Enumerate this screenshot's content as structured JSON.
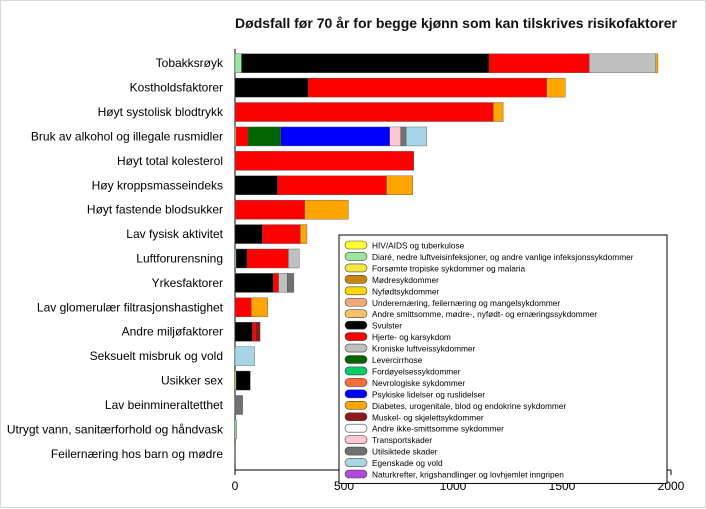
{
  "chart_data": {
    "type": "bar",
    "stacked": true,
    "orientation": "horizontal",
    "title": "Dødsfall før 70 år for begge kjønn som kan tilskrives risikofaktorer",
    "xlim": [
      0,
      2000
    ],
    "x_ticks": [
      "0",
      "500",
      "1000",
      "1500",
      "2000"
    ],
    "grid": false,
    "legend_position": "bottom-right",
    "categories": [
      "Tobakksrøyk",
      "Kostholdsfaktorer",
      "Høyt systolisk blodtrykk",
      "Bruk av alkohol og illegale rusmidler",
      "Høyt total kolesterol",
      "Høy kroppsmasseindeks",
      "Høyt fastende blodsukker",
      "Lav fysisk aktivitet",
      "Luftforurensning",
      "Yrkesfaktorer",
      "Lav glomerulær filtrasjonshastighet",
      "Andre miljøfaktorer",
      "Seksuelt misbruk og vold",
      "Usikker sex",
      "Lav beinmineraltetthet",
      "Utrygt vann, sanitærforhold og håndvask",
      "Feilernæring hos barn og mødre"
    ],
    "series": [
      {
        "name": "HIV/AIDS og tuberkulose",
        "color": "#ffff33",
        "values": [
          0,
          0,
          0,
          0,
          0,
          0,
          0,
          0,
          0,
          0,
          0,
          0,
          0,
          5,
          0,
          0,
          0
        ]
      },
      {
        "name": "Diaré, nedre luftveisinfeksjoner, og andre vanlige infeksjonssykdommer",
        "color": "#99e6a0",
        "values": [
          30,
          0,
          0,
          0,
          0,
          0,
          0,
          0,
          5,
          0,
          0,
          0,
          0,
          0,
          0,
          8,
          3
        ]
      },
      {
        "name": "Forsømte tropiske sykdommer og malaria",
        "color": "#f5e642",
        "values": [
          0,
          0,
          0,
          0,
          0,
          0,
          0,
          0,
          0,
          0,
          0,
          0,
          0,
          0,
          0,
          0,
          0
        ]
      },
      {
        "name": "Mødresykdommer",
        "color": "#c8860a",
        "values": [
          0,
          0,
          0,
          0,
          0,
          0,
          0,
          0,
          0,
          0,
          0,
          0,
          0,
          0,
          0,
          0,
          0
        ]
      },
      {
        "name": "Nyfødtsykdommer",
        "color": "#ffd700",
        "values": [
          0,
          0,
          0,
          0,
          0,
          0,
          0,
          0,
          0,
          0,
          0,
          0,
          0,
          0,
          0,
          0,
          0
        ]
      },
      {
        "name": "Underernæring, feilernæring og mangelsykdommer",
        "color": "#f0a878",
        "values": [
          0,
          0,
          0,
          0,
          0,
          0,
          0,
          0,
          0,
          0,
          0,
          0,
          0,
          0,
          0,
          0,
          0
        ]
      },
      {
        "name": "Andre smittsomme, mødre-, nyfødt- og ernæringssykdommer",
        "color": "#f4c36a",
        "values": [
          0,
          0,
          0,
          5,
          0,
          0,
          0,
          0,
          0,
          0,
          0,
          0,
          0,
          0,
          0,
          0,
          0
        ]
      },
      {
        "name": "Svulster",
        "color": "#000000",
        "values": [
          1135,
          335,
          0,
          0,
          0,
          195,
          0,
          125,
          50,
          175,
          0,
          80,
          0,
          65,
          0,
          0,
          0
        ]
      },
      {
        "name": "Hjerte- og karsykdom",
        "color": "#ff0000",
        "values": [
          460,
          1095,
          1185,
          55,
          820,
          500,
          320,
          175,
          190,
          25,
          75,
          15,
          0,
          0,
          0,
          0,
          0
        ]
      },
      {
        "name": "Kroniske luftveissykdommer",
        "color": "#c0c0c0",
        "values": [
          305,
          0,
          0,
          0,
          0,
          0,
          0,
          0,
          50,
          40,
          0,
          0,
          0,
          0,
          0,
          0,
          0
        ]
      },
      {
        "name": "Levercirrhose",
        "color": "#006400",
        "values": [
          0,
          0,
          0,
          150,
          0,
          0,
          0,
          0,
          0,
          0,
          0,
          0,
          0,
          0,
          0,
          0,
          0
        ]
      },
      {
        "name": "Fordøyelsessykdommer",
        "color": "#00cc66",
        "values": [
          0,
          0,
          0,
          0,
          0,
          0,
          0,
          0,
          0,
          0,
          0,
          0,
          0,
          0,
          0,
          0,
          0
        ]
      },
      {
        "name": "Nevrologiske sykdommer",
        "color": "#ff6b3d",
        "values": [
          0,
          0,
          0,
          0,
          0,
          0,
          0,
          0,
          0,
          0,
          0,
          0,
          0,
          0,
          0,
          0,
          0
        ]
      },
      {
        "name": "Psykiske lidelser og ruslidelser",
        "color": "#0000ff",
        "values": [
          0,
          0,
          0,
          500,
          0,
          0,
          0,
          0,
          0,
          0,
          0,
          0,
          0,
          0,
          0,
          0,
          0
        ]
      },
      {
        "name": "Diabetes, urogenitale, blod og endokrine sykdommer",
        "color": "#ffa500",
        "values": [
          10,
          85,
          45,
          0,
          0,
          120,
          200,
          30,
          0,
          0,
          75,
          0,
          0,
          0,
          0,
          0,
          0
        ]
      },
      {
        "name": "Muskel- og skjelettsykdommer",
        "color": "#8b1a1a",
        "values": [
          0,
          0,
          0,
          0,
          0,
          0,
          0,
          0,
          0,
          0,
          0,
          20,
          0,
          0,
          0,
          0,
          0
        ]
      },
      {
        "name": "Andre ikke-smittsomme sykdommer",
        "color": "#ffffff",
        "values": [
          0,
          0,
          0,
          0,
          0,
          0,
          0,
          0,
          0,
          0,
          0,
          0,
          0,
          0,
          0,
          0,
          0
        ]
      },
      {
        "name": "Transportskader",
        "color": "#ffc8d2",
        "values": [
          0,
          0,
          0,
          50,
          0,
          0,
          0,
          0,
          0,
          0,
          0,
          0,
          0,
          0,
          0,
          0,
          0
        ]
      },
      {
        "name": "Utilsiktede skader",
        "color": "#707070",
        "values": [
          0,
          0,
          0,
          25,
          0,
          0,
          0,
          0,
          0,
          30,
          0,
          0,
          0,
          0,
          35,
          0,
          0
        ]
      },
      {
        "name": "Egenskade og vold",
        "color": "#a8d4e8",
        "values": [
          0,
          0,
          0,
          95,
          0,
          0,
          0,
          0,
          0,
          0,
          0,
          0,
          90,
          0,
          0,
          0,
          0
        ]
      },
      {
        "name": "Naturkrefter, krigshandlinger og lovhjemlet inngripen",
        "color": "#b048d8",
        "values": [
          0,
          0,
          0,
          0,
          0,
          0,
          0,
          0,
          0,
          0,
          0,
          0,
          0,
          0,
          0,
          0,
          0
        ]
      }
    ]
  }
}
